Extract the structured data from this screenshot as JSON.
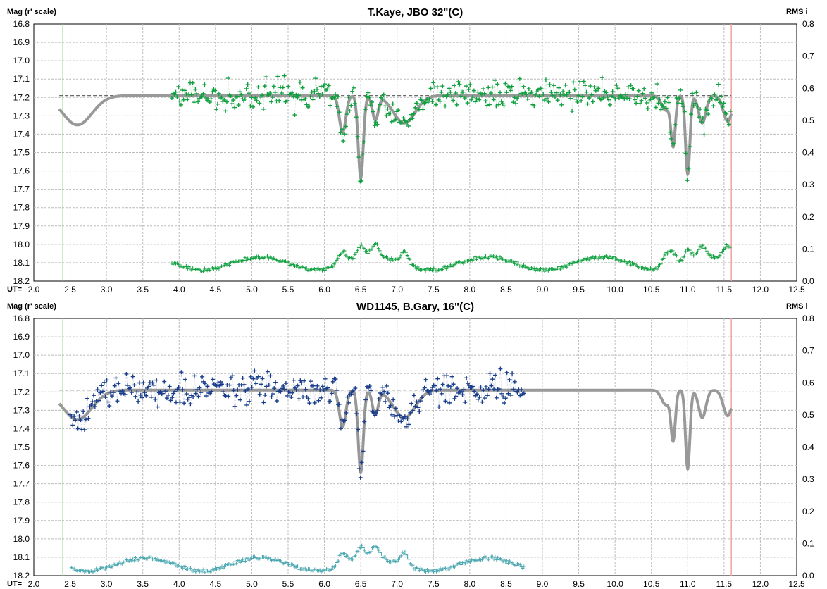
{
  "chart_data": [
    {
      "type": "scatter",
      "title": "T.Kaye, JBO 32\"(C)",
      "ylabel": "Mag (r' scale)",
      "y2label": "RMS i",
      "xlabel": "UT=",
      "xlim": [
        2.0,
        12.5
      ],
      "ylim": [
        16.8,
        18.2
      ],
      "y2lim": [
        0.0,
        0.8
      ],
      "y_inverted": true,
      "grid": true,
      "xticks": [
        "2.0",
        "2.5",
        "3.0",
        "3.5",
        "4.0",
        "4.5",
        "5.0",
        "5.5",
        "6.0",
        "6.5",
        "7.0",
        "7.5",
        "8.0",
        "8.5",
        "9.0",
        "9.5",
        "10.0",
        "10.5",
        "11.0",
        "11.5",
        "12.0",
        "12.5"
      ],
      "yticks": [
        "16.8",
        "16.9",
        "17.0",
        "17.1",
        "17.2",
        "17.3",
        "17.4",
        "17.5",
        "17.6",
        "17.7",
        "17.8",
        "17.9",
        "18.0",
        "18.1",
        "18.2"
      ],
      "y2ticks": [
        "0.8",
        "0.7",
        "0.6",
        "0.5",
        "0.4",
        "0.3",
        "0.2",
        "0.1",
        "0.0"
      ],
      "reference_mag": 17.19,
      "start_line_x": 2.4,
      "end_line_x": 11.6,
      "series": [
        {
          "color": "#10a040",
          "x_range": [
            3.9,
            11.6
          ],
          "mag_noise": 0.055,
          "rms_mean": 0.055
        },
        {
          "color": "#999999",
          "x_range": [
            2.35,
            11.6
          ]
        }
      ],
      "model_dips": [
        {
          "center": 6.25,
          "depth": 0.2,
          "width": 0.045
        },
        {
          "center": 6.5,
          "depth": 0.45,
          "width": 0.035
        },
        {
          "center": 6.7,
          "depth": 0.13,
          "width": 0.04
        },
        {
          "center": 7.1,
          "depth": 0.15,
          "width": 0.15
        },
        {
          "center": 10.7,
          "depth": 0.08,
          "width": 0.06
        },
        {
          "center": 10.8,
          "depth": 0.26,
          "width": 0.03
        },
        {
          "center": 11.0,
          "depth": 0.43,
          "width": 0.03
        },
        {
          "center": 11.2,
          "depth": 0.15,
          "width": 0.05
        },
        {
          "center": 11.55,
          "depth": 0.14,
          "width": 0.06
        }
      ]
    },
    {
      "type": "scatter",
      "title": "WD1145, B.Gary, 16\"(C)",
      "ylabel": "Mag (r' scale)",
      "y2label": "RMS i",
      "xlabel": "UT=",
      "xlim": [
        2.0,
        12.5
      ],
      "ylim": [
        16.8,
        18.2
      ],
      "y2lim": [
        0.0,
        0.8
      ],
      "y_inverted": true,
      "grid": true,
      "xticks": [
        "2.0",
        "2.5",
        "3.0",
        "3.5",
        "4.0",
        "4.5",
        "5.0",
        "5.5",
        "6.0",
        "6.5",
        "7.0",
        "7.5",
        "8.0",
        "8.5",
        "9.0",
        "9.5",
        "10.0",
        "10.5",
        "11.0",
        "11.5",
        "12.0",
        "12.5"
      ],
      "yticks": [
        "16.8",
        "16.9",
        "17.0",
        "17.1",
        "17.2",
        "17.3",
        "17.4",
        "17.5",
        "17.6",
        "17.7",
        "17.8",
        "17.9",
        "18.0",
        "18.1",
        "18.2"
      ],
      "y2ticks": [
        "0.8",
        "0.7",
        "0.6",
        "0.5",
        "0.4",
        "0.3",
        "0.2",
        "0.1",
        "0.0"
      ],
      "reference_mag": 17.19,
      "start_line_x": 2.4,
      "end_line_x": 11.6,
      "series": [
        {
          "color": "#1a3e8c",
          "x_range": [
            2.5,
            8.75
          ],
          "mag_noise": 0.06,
          "rms_mean": 0.035
        },
        {
          "color": "#999999",
          "x_range": [
            2.35,
            11.6
          ]
        }
      ],
      "model_dips": [
        {
          "center": 6.25,
          "depth": 0.2,
          "width": 0.045
        },
        {
          "center": 6.5,
          "depth": 0.45,
          "width": 0.035
        },
        {
          "center": 6.7,
          "depth": 0.13,
          "width": 0.04
        },
        {
          "center": 7.1,
          "depth": 0.15,
          "width": 0.15
        },
        {
          "center": 10.7,
          "depth": 0.08,
          "width": 0.06
        },
        {
          "center": 10.8,
          "depth": 0.26,
          "width": 0.03
        },
        {
          "center": 11.0,
          "depth": 0.43,
          "width": 0.03
        },
        {
          "center": 11.2,
          "depth": 0.15,
          "width": 0.05
        },
        {
          "center": 11.55,
          "depth": 0.14,
          "width": 0.06
        }
      ]
    }
  ]
}
